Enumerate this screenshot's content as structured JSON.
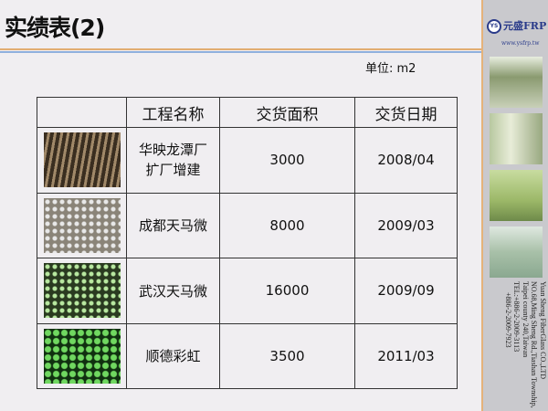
{
  "title": "实绩表(2)",
  "unit": "单位: m2",
  "brand": {
    "logo_mark": "YS",
    "name": "元盛FRP",
    "url": "www.ysfrp.tw",
    "address": [
      "Yuan Sheng FiberGlass CO.,LTD",
      "NO.68,Ming Sheng Rd.,Tiashan Township,",
      "Taipei county 240,Taiwan",
      "TEL:+886-2-2009-3113",
      "+886-2-2009-7923"
    ]
  },
  "colors": {
    "title_rule_orange": "#e2ad72",
    "title_rule_blue": "#8fb0dd",
    "side_panel": "#c9c9cd"
  },
  "table": {
    "headers": [
      "",
      "工程名称",
      "交货面积",
      "交货日期"
    ],
    "rows": [
      {
        "name": "华映龙潭厂扩厂增建",
        "area": "3000",
        "date": "2008/04"
      },
      {
        "name": "成都天马微",
        "area": "8000",
        "date": "2009/03"
      },
      {
        "name": "武汉天马微",
        "area": "16000",
        "date": "2009/09"
      },
      {
        "name": "顺德彩虹",
        "area": "3500",
        "date": "2011/03"
      }
    ]
  }
}
